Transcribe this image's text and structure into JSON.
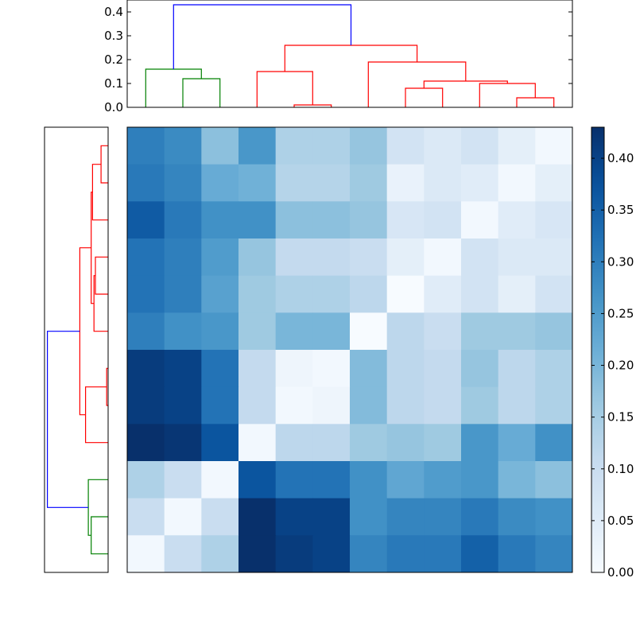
{
  "chart_data": {
    "type": "heatmap",
    "colormap": "Blues",
    "colorbar": {
      "range": [
        0,
        0.43
      ],
      "ticks": [
        0.0,
        0.05,
        0.1,
        0.15,
        0.2,
        0.25,
        0.3,
        0.35,
        0.4
      ],
      "tick_labels": [
        "0.00",
        "0.05",
        "0.10",
        "0.15",
        "0.20",
        "0.25",
        "0.30",
        "0.35",
        "0.40"
      ]
    },
    "matrix": [
      [
        0.3,
        0.28,
        0.18,
        0.26,
        0.14,
        0.14,
        0.17,
        0.08,
        0.06,
        0.08,
        0.04,
        0.01
      ],
      [
        0.31,
        0.29,
        0.22,
        0.21,
        0.13,
        0.13,
        0.16,
        0.03,
        0.06,
        0.05,
        0.01,
        0.04
      ],
      [
        0.36,
        0.31,
        0.27,
        0.27,
        0.18,
        0.18,
        0.17,
        0.07,
        0.08,
        0.01,
        0.05,
        0.07
      ],
      [
        0.32,
        0.3,
        0.25,
        0.17,
        0.11,
        0.11,
        0.1,
        0.04,
        0.01,
        0.08,
        0.06,
        0.06
      ],
      [
        0.32,
        0.3,
        0.24,
        0.16,
        0.14,
        0.14,
        0.12,
        0.0,
        0.05,
        0.08,
        0.04,
        0.08
      ],
      [
        0.3,
        0.27,
        0.26,
        0.16,
        0.2,
        0.2,
        0.0,
        0.12,
        0.1,
        0.16,
        0.16,
        0.17
      ],
      [
        0.41,
        0.4,
        0.32,
        0.11,
        0.02,
        0.01,
        0.19,
        0.12,
        0.11,
        0.17,
        0.12,
        0.14
      ],
      [
        0.41,
        0.4,
        0.32,
        0.11,
        0.01,
        0.02,
        0.19,
        0.12,
        0.11,
        0.16,
        0.12,
        0.14
      ],
      [
        0.43,
        0.42,
        0.37,
        0.01,
        0.12,
        0.12,
        0.16,
        0.17,
        0.16,
        0.26,
        0.22,
        0.27
      ],
      [
        0.14,
        0.1,
        0.01,
        0.37,
        0.32,
        0.32,
        0.27,
        0.23,
        0.25,
        0.26,
        0.2,
        0.18
      ],
      [
        0.1,
        0.01,
        0.1,
        0.43,
        0.4,
        0.4,
        0.27,
        0.29,
        0.29,
        0.31,
        0.28,
        0.27
      ],
      [
        0.01,
        0.1,
        0.14,
        0.43,
        0.41,
        0.4,
        0.29,
        0.31,
        0.31,
        0.35,
        0.31,
        0.29
      ]
    ],
    "top_dendrogram": {
      "ylim": [
        0,
        0.45
      ],
      "yticks": [
        0.0,
        0.1,
        0.2,
        0.3,
        0.4
      ],
      "ytick_labels": [
        "0.0",
        "0.1",
        "0.2",
        "0.3",
        "0.4"
      ],
      "leaf_count": 12,
      "links": [
        {
          "color": "#008000",
          "left": 1.5,
          "right": 2.5,
          "height": 0.12,
          "left_bottom": 0.0,
          "right_bottom": 0.0
        },
        {
          "color": "#008000",
          "left": 0.5,
          "right": 2.0,
          "height": 0.16,
          "left_bottom": 0.0,
          "right_bottom": 0.12
        },
        {
          "color": "#ff0000",
          "left": 4.5,
          "right": 5.5,
          "height": 0.01,
          "left_bottom": 0.0,
          "right_bottom": 0.0
        },
        {
          "color": "#ff0000",
          "left": 3.5,
          "right": 5.0,
          "height": 0.15,
          "left_bottom": 0.0,
          "right_bottom": 0.01
        },
        {
          "color": "#ff0000",
          "left": 7.5,
          "right": 8.5,
          "height": 0.08,
          "left_bottom": 0.0,
          "right_bottom": 0.0
        },
        {
          "color": "#ff0000",
          "left": 10.5,
          "right": 11.5,
          "height": 0.04,
          "left_bottom": 0.0,
          "right_bottom": 0.0
        },
        {
          "color": "#ff0000",
          "left": 9.5,
          "right": 11.0,
          "height": 0.1,
          "left_bottom": 0.0,
          "right_bottom": 0.04
        },
        {
          "color": "#ff0000",
          "left": 8.0,
          "right": 10.25,
          "height": 0.11,
          "left_bottom": 0.08,
          "right_bottom": 0.1
        },
        {
          "color": "#ff0000",
          "left": 6.5,
          "right": 9.125,
          "height": 0.19,
          "left_bottom": 0.0,
          "right_bottom": 0.11
        },
        {
          "color": "#ff0000",
          "left": 4.25,
          "right": 7.8125,
          "height": 0.26,
          "left_bottom": 0.15,
          "right_bottom": 0.19
        },
        {
          "color": "#0000ff",
          "left": 1.25,
          "right": 6.03125,
          "height": 0.43,
          "left_bottom": 0.16,
          "right_bottom": 0.26
        }
      ]
    },
    "left_dendrogram": {
      "ylim": [
        0,
        0.45
      ],
      "leaf_count": 12,
      "links": [
        {
          "color": "#008000",
          "left": 0.5,
          "right": 1.5,
          "height": 0.12,
          "left_bottom": 0.0,
          "right_bottom": 0.0
        },
        {
          "color": "#008000",
          "left": 1.0,
          "right": 2.5,
          "height": 0.14,
          "left_bottom": 0.12,
          "right_bottom": 0.0
        },
        {
          "color": "#ff0000",
          "left": 4.5,
          "right": 5.5,
          "height": 0.01,
          "left_bottom": 0.0,
          "right_bottom": 0.0
        },
        {
          "color": "#ff0000",
          "left": 3.5,
          "right": 5.0,
          "height": 0.16,
          "left_bottom": 0.0,
          "right_bottom": 0.01
        },
        {
          "color": "#ff0000",
          "left": 7.5,
          "right": 8.5,
          "height": 0.09,
          "left_bottom": 0.0,
          "right_bottom": 0.0
        },
        {
          "color": "#ff0000",
          "left": 6.5,
          "right": 8.0,
          "height": 0.1,
          "left_bottom": 0.0,
          "right_bottom": 0.09
        },
        {
          "color": "#ff0000",
          "left": 10.5,
          "right": 11.5,
          "height": 0.05,
          "left_bottom": 0.0,
          "right_bottom": 0.0
        },
        {
          "color": "#ff0000",
          "left": 9.5,
          "right": 11.0,
          "height": 0.11,
          "left_bottom": 0.0,
          "right_bottom": 0.05
        },
        {
          "color": "#ff0000",
          "left": 7.25,
          "right": 10.25,
          "height": 0.12,
          "left_bottom": 0.1,
          "right_bottom": 0.11
        },
        {
          "color": "#ff0000",
          "left": 4.25,
          "right": 8.75,
          "height": 0.2,
          "left_bottom": 0.16,
          "right_bottom": 0.12
        },
        {
          "color": "#0000ff",
          "left": 1.75,
          "right": 6.5,
          "height": 0.43,
          "left_bottom": 0.14,
          "right_bottom": 0.2
        }
      ]
    }
  }
}
